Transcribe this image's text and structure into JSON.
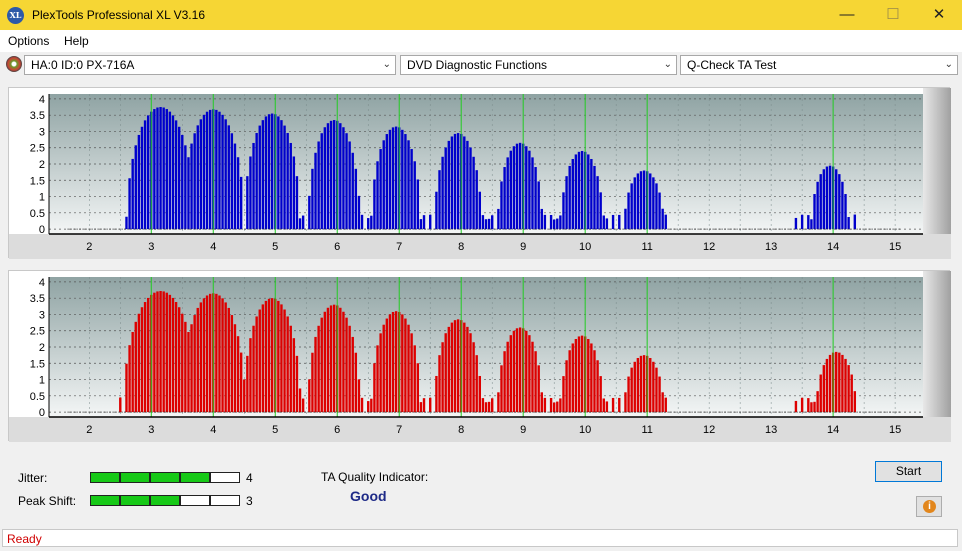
{
  "window": {
    "title": "PlexTools Professional XL V3.16",
    "icon_text": "XL",
    "controls": [
      "minimize-icon",
      "maximize-icon",
      "close-icon"
    ]
  },
  "menu": {
    "items": [
      "Options",
      "Help"
    ]
  },
  "toolbar": {
    "drive_select": "HA:0 ID:0  PX-716A",
    "function_select": "DVD Diagnostic Functions",
    "test_select": "Q-Check TA Test"
  },
  "chart_data": [
    {
      "type": "bar",
      "series_color": "#0000cc",
      "x_ticks": [
        2,
        3,
        4,
        5,
        6,
        7,
        8,
        9,
        10,
        11,
        12,
        13,
        14,
        15
      ],
      "y_ticks": [
        0,
        0.5,
        1,
        1.5,
        2,
        2.5,
        3,
        3.5,
        4
      ],
      "y_tick_labels": [
        "0",
        "0.5",
        "1",
        "1.5",
        "2",
        "2.5",
        "3",
        "3.5",
        "4"
      ],
      "xlim": [
        1.35,
        15.45
      ],
      "ylim": [
        -0.15,
        4.15
      ],
      "marker_x": [
        3,
        4,
        5,
        6,
        7,
        8,
        9,
        10,
        11,
        14
      ],
      "peaks": [
        {
          "center": 3.15,
          "height": 3.75,
          "halfwidth": 0.55,
          "start": 2.55
        },
        {
          "center": 4.0,
          "height": 3.68,
          "halfwidth": 0.5
        },
        {
          "center": 4.95,
          "height": 3.55,
          "halfwidth": 0.45
        },
        {
          "center": 5.95,
          "height": 3.35,
          "halfwidth": 0.42
        },
        {
          "center": 6.95,
          "height": 3.15,
          "halfwidth": 0.4
        },
        {
          "center": 7.95,
          "height": 2.95,
          "halfwidth": 0.38
        },
        {
          "center": 8.95,
          "height": 2.65,
          "halfwidth": 0.36
        },
        {
          "center": 9.95,
          "height": 2.4,
          "halfwidth": 0.34
        },
        {
          "center": 10.95,
          "height": 1.8,
          "halfwidth": 0.32
        },
        {
          "center": 13.95,
          "height": 1.95,
          "halfwidth": 0.3
        }
      ]
    },
    {
      "type": "bar",
      "series_color": "#dd0000",
      "x_ticks": [
        2,
        3,
        4,
        5,
        6,
        7,
        8,
        9,
        10,
        11,
        12,
        13,
        14,
        15
      ],
      "y_ticks": [
        0,
        0.5,
        1,
        1.5,
        2,
        2.5,
        3,
        3.5,
        4
      ],
      "y_tick_labels": [
        "0",
        "0.5",
        "1",
        "1.5",
        "2",
        "2.5",
        "3",
        "3.5",
        "4"
      ],
      "xlim": [
        1.35,
        15.45
      ],
      "ylim": [
        -0.15,
        4.15
      ],
      "marker_x": [
        3,
        4,
        5,
        6,
        7,
        8,
        9,
        10,
        11,
        14
      ],
      "peaks": [
        {
          "center": 3.15,
          "height": 3.72,
          "halfwidth": 0.6,
          "start": 2.45
        },
        {
          "center": 4.0,
          "height": 3.65,
          "halfwidth": 0.52
        },
        {
          "center": 4.95,
          "height": 3.5,
          "halfwidth": 0.46
        },
        {
          "center": 5.95,
          "height": 3.3,
          "halfwidth": 0.42
        },
        {
          "center": 6.95,
          "height": 3.1,
          "halfwidth": 0.4
        },
        {
          "center": 7.95,
          "height": 2.85,
          "halfwidth": 0.38
        },
        {
          "center": 8.95,
          "height": 2.6,
          "halfwidth": 0.36
        },
        {
          "center": 9.95,
          "height": 2.35,
          "halfwidth": 0.34
        },
        {
          "center": 10.95,
          "height": 1.75,
          "halfwidth": 0.32
        },
        {
          "center": 14.05,
          "height": 1.85,
          "halfwidth": 0.32
        }
      ]
    }
  ],
  "results": {
    "jitter_label": "Jitter:",
    "jitter_value": "4",
    "jitter_level": 4,
    "peak_shift_label": "Peak Shift:",
    "peak_shift_value": "3",
    "peak_shift_level": 3,
    "meter_segments": 5,
    "quality_title": "TA Quality Indicator:",
    "quality_value": "Good"
  },
  "buttons": {
    "start": "Start",
    "info_icon_text": "i"
  },
  "status": {
    "text": "Ready"
  }
}
